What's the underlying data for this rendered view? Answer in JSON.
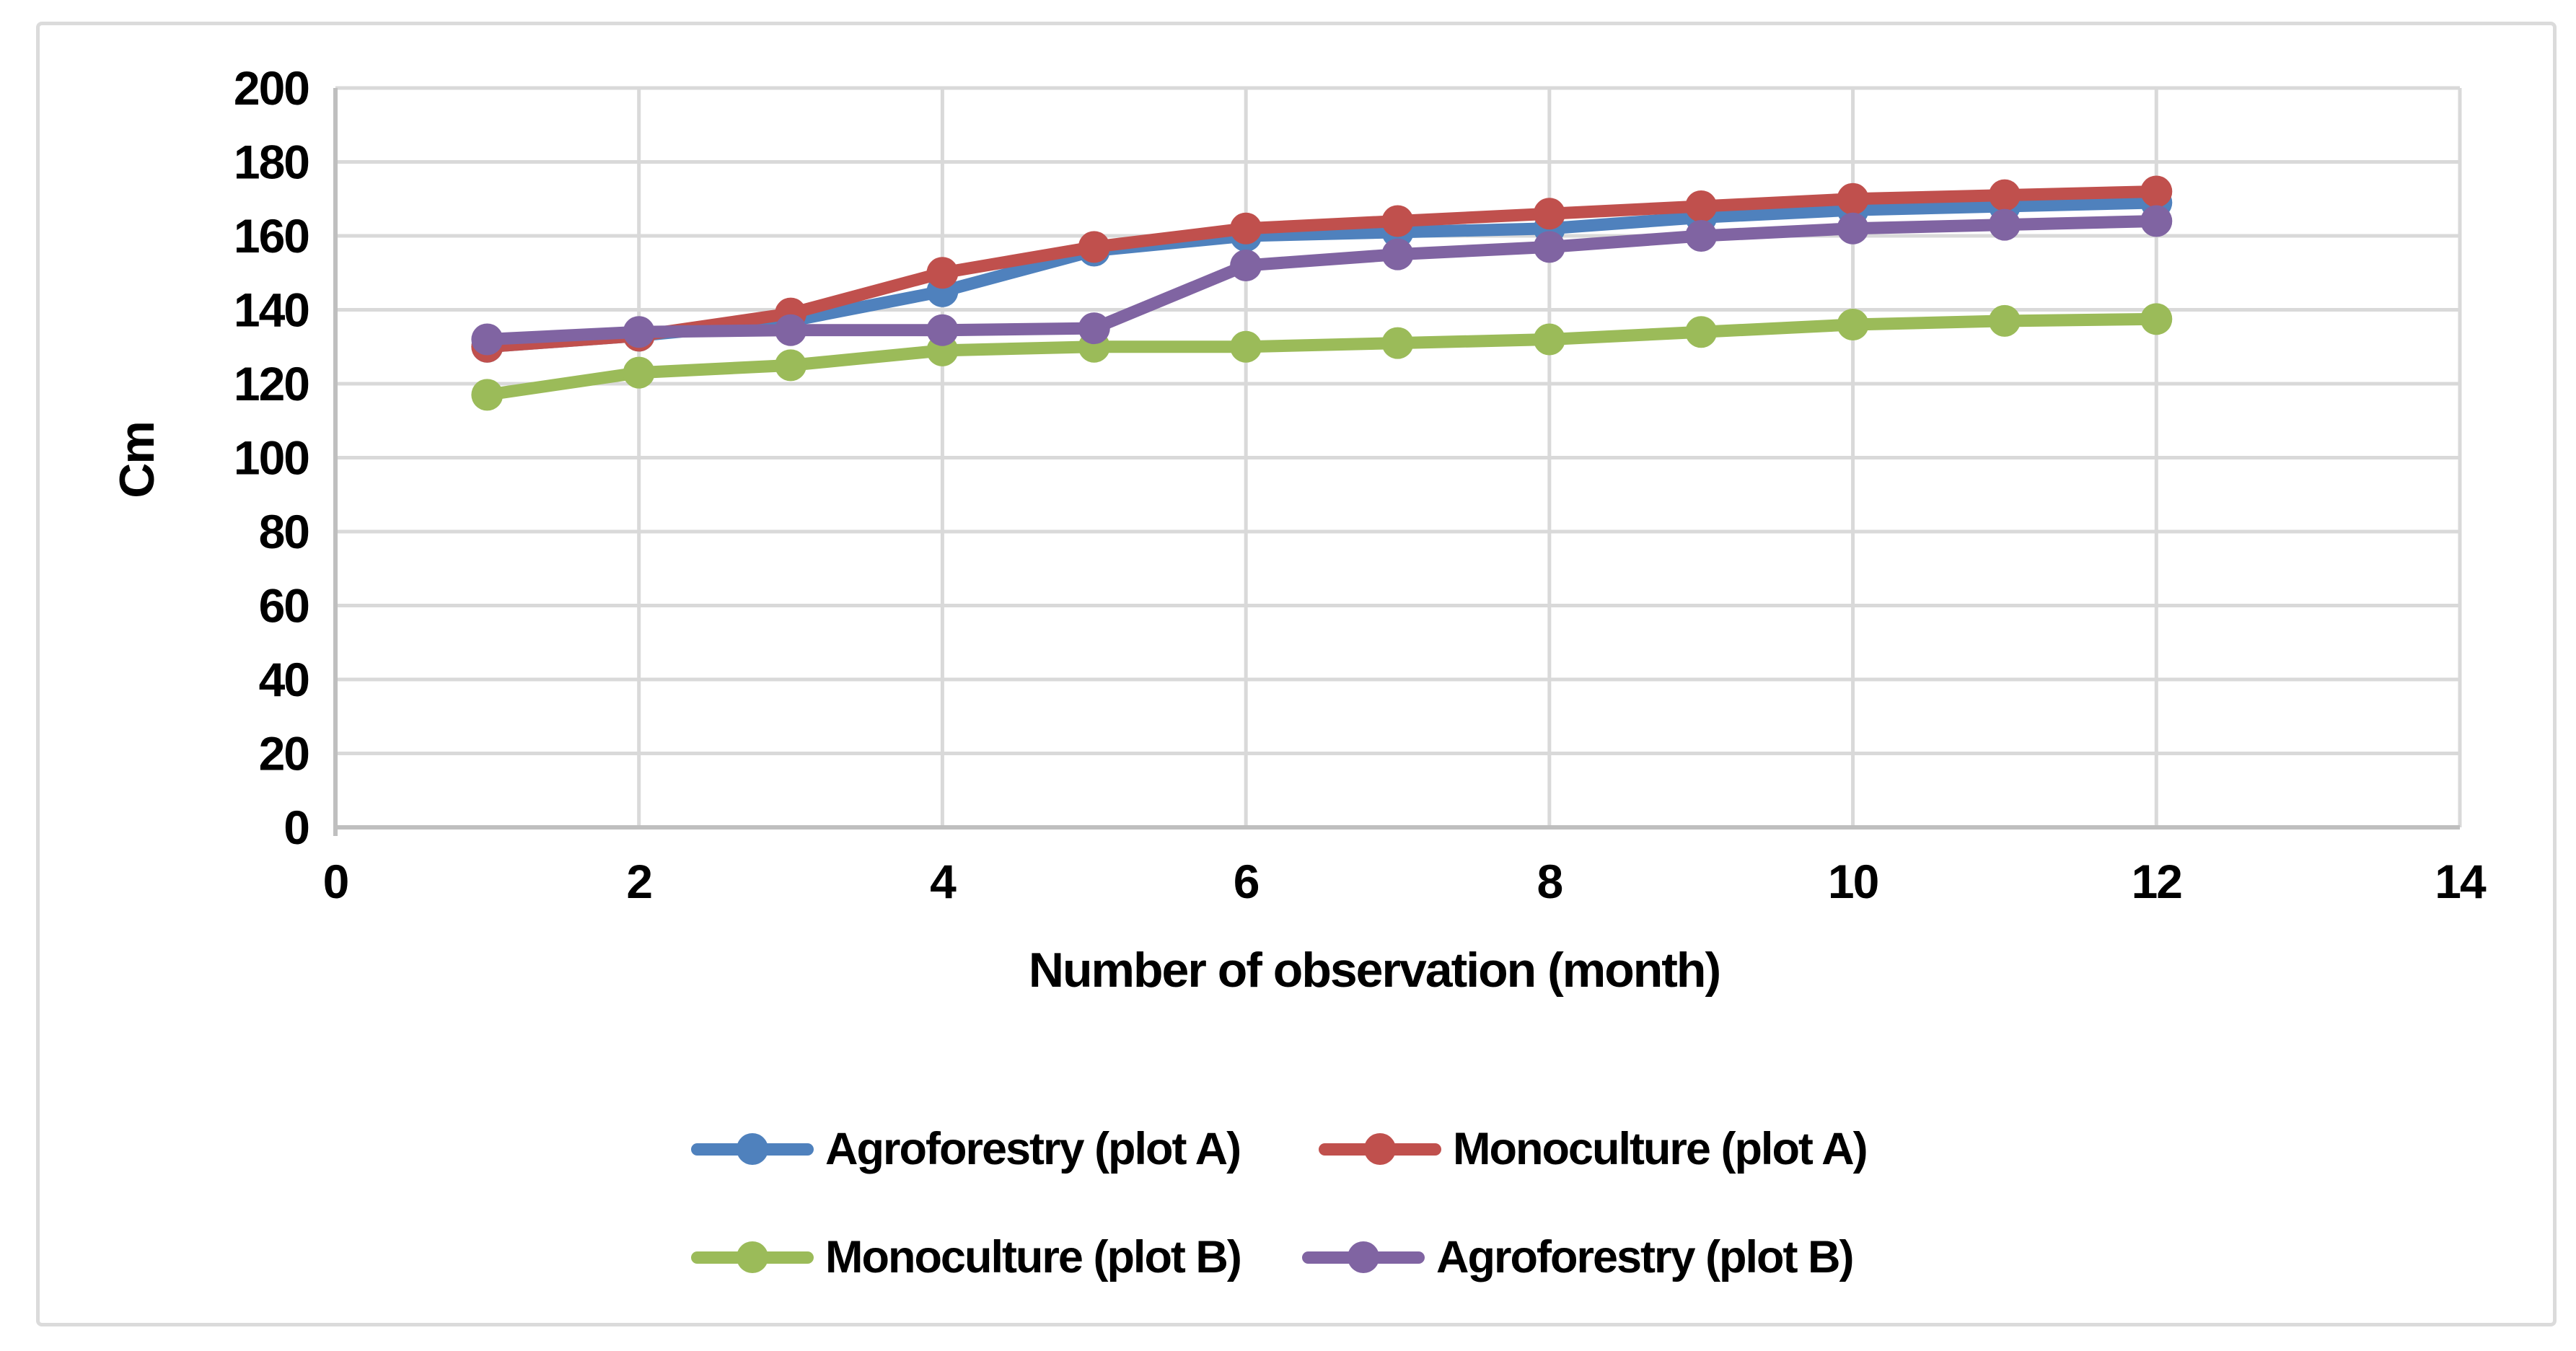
{
  "chart_data": {
    "type": "line",
    "title": "",
    "xlabel": "Number of observation (month)",
    "ylabel": "Cm",
    "x": [
      1,
      2,
      3,
      4,
      5,
      6,
      7,
      8,
      9,
      10,
      11,
      12
    ],
    "series": [
      {
        "name": "Agroforestry (plot A)",
        "color": "#4F81BD",
        "values": [
          130,
          133,
          137,
          145,
          156,
          160,
          161,
          162,
          165,
          167,
          168,
          169
        ]
      },
      {
        "name": "Monoculture (plot A)",
        "color": "#C0504D",
        "values": [
          130,
          133,
          139,
          150,
          157,
          162,
          164,
          166,
          168,
          170,
          171,
          172
        ]
      },
      {
        "name": "Monoculture (plot B)",
        "color": "#9BBB59",
        "values": [
          117,
          123,
          125,
          129,
          130,
          130,
          131,
          132,
          134,
          136,
          137,
          137.5
        ]
      },
      {
        "name": "Agroforestry (plot B)",
        "color": "#8064A2",
        "values": [
          132,
          134,
          134.5,
          134.5,
          135,
          152,
          155,
          157,
          160,
          162,
          163,
          164
        ]
      }
    ],
    "xlim": [
      0,
      14
    ],
    "ylim": [
      0,
      200
    ],
    "x_ticks": [
      0,
      2,
      4,
      6,
      8,
      10,
      12,
      14
    ],
    "y_ticks": [
      0,
      20,
      40,
      60,
      80,
      100,
      120,
      140,
      160,
      180,
      200
    ],
    "grid": "major",
    "legend_position": "bottom-two-rows",
    "colors": {
      "gridline": "#D9D9D9",
      "axis_line": "#BFBFBF",
      "frame": "#DBDBDB",
      "background": "#FFFFFF"
    }
  }
}
